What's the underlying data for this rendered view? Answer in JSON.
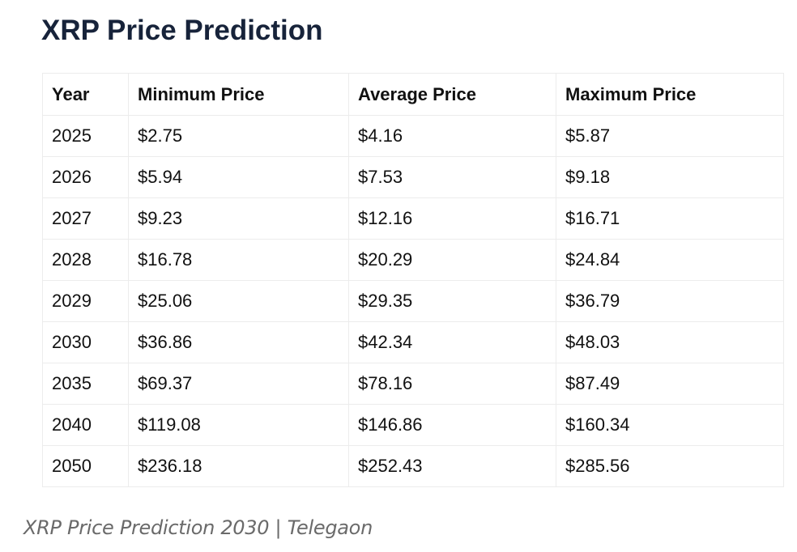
{
  "title": "XRP Price Prediction",
  "table": {
    "headers": [
      "Year",
      "Minimum Price",
      "Average Price",
      "Maximum Price"
    ],
    "rows": [
      [
        "2025",
        "$2.75",
        "$4.16",
        "$5.87"
      ],
      [
        "2026",
        "$5.94",
        "$7.53",
        "$9.18"
      ],
      [
        "2027",
        "$9.23",
        "$12.16",
        "$16.71"
      ],
      [
        "2028",
        "$16.78",
        "$20.29",
        "$24.84"
      ],
      [
        "2029",
        "$25.06",
        "$29.35",
        "$36.79"
      ],
      [
        "2030",
        "$36.86",
        "$42.34",
        "$48.03"
      ],
      [
        "2035",
        "$69.37",
        "$78.16",
        "$87.49"
      ],
      [
        "2040",
        "$119.08",
        "$146.86",
        "$160.34"
      ],
      [
        "2050",
        "$236.18",
        "$252.43",
        "$285.56"
      ]
    ]
  },
  "caption": "XRP Price Prediction 2030 | Telegaon",
  "colors": {
    "title": "#17233a",
    "text": "#111111",
    "caption": "#6a6a6a",
    "border": "#ececec"
  }
}
